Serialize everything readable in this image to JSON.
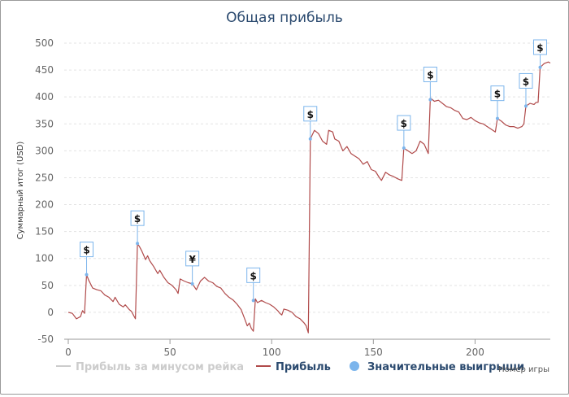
{
  "chart_data": {
    "type": "line",
    "title": "Общая прибыль",
    "xlabel": "Номер игры",
    "ylabel": "Суммарный итог (USD)",
    "xlim": [
      -2,
      237
    ],
    "ylim": [
      -50,
      500
    ],
    "xticks": [
      0,
      50,
      100,
      150,
      200
    ],
    "yticks": [
      -50,
      0,
      50,
      100,
      150,
      200,
      250,
      300,
      350,
      400,
      450,
      500
    ],
    "grid": "horizontal dashed",
    "legend_position": "bottom",
    "legend": [
      {
        "label": "Прибыль за минусом рейка",
        "color": "#cccccc",
        "marker": "line",
        "hidden": true
      },
      {
        "label": "Прибыль",
        "color": "#b04a4a",
        "marker": "line"
      },
      {
        "label": "Значительные выигрыши",
        "color": "#7cb5ec",
        "marker": "circle"
      }
    ],
    "series": [
      {
        "name": "Прибыль",
        "color": "#b04a4a",
        "points": [
          [
            0,
            0
          ],
          [
            2,
            -2
          ],
          [
            4,
            -12
          ],
          [
            6,
            -8
          ],
          [
            7,
            3
          ],
          [
            8,
            -2
          ],
          [
            9,
            70
          ],
          [
            10,
            60
          ],
          [
            12,
            45
          ],
          [
            14,
            42
          ],
          [
            16,
            40
          ],
          [
            18,
            32
          ],
          [
            20,
            28
          ],
          [
            22,
            20
          ],
          [
            23,
            28
          ],
          [
            25,
            15
          ],
          [
            27,
            10
          ],
          [
            28,
            14
          ],
          [
            30,
            5
          ],
          [
            31,
            2
          ],
          [
            32,
            -5
          ],
          [
            33,
            -12
          ],
          [
            34,
            128
          ],
          [
            35,
            122
          ],
          [
            36,
            115
          ],
          [
            38,
            98
          ],
          [
            39,
            105
          ],
          [
            40,
            96
          ],
          [
            42,
            85
          ],
          [
            44,
            72
          ],
          [
            45,
            78
          ],
          [
            47,
            65
          ],
          [
            49,
            55
          ],
          [
            51,
            50
          ],
          [
            53,
            42
          ],
          [
            54,
            35
          ],
          [
            55,
            62
          ],
          [
            57,
            58
          ],
          [
            59,
            55
          ],
          [
            61,
            53
          ],
          [
            63,
            42
          ],
          [
            65,
            58
          ],
          [
            67,
            65
          ],
          [
            69,
            58
          ],
          [
            71,
            55
          ],
          [
            73,
            48
          ],
          [
            75,
            45
          ],
          [
            77,
            35
          ],
          [
            79,
            28
          ],
          [
            81,
            23
          ],
          [
            83,
            15
          ],
          [
            85,
            5
          ],
          [
            86,
            -5
          ],
          [
            87,
            -15
          ],
          [
            88,
            -25
          ],
          [
            89,
            -20
          ],
          [
            90,
            -30
          ],
          [
            91,
            -35
          ],
          [
            92,
            25
          ],
          [
            93,
            18
          ],
          [
            95,
            22
          ],
          [
            97,
            18
          ],
          [
            99,
            15
          ],
          [
            101,
            10
          ],
          [
            103,
            3
          ],
          [
            104,
            -2
          ],
          [
            105,
            -5
          ],
          [
            106,
            6
          ],
          [
            108,
            4
          ],
          [
            110,
            0
          ],
          [
            112,
            -8
          ],
          [
            114,
            -12
          ],
          [
            116,
            -20
          ],
          [
            117,
            -25
          ],
          [
            118,
            -38
          ],
          [
            119,
            322
          ],
          [
            121,
            338
          ],
          [
            123,
            332
          ],
          [
            125,
            318
          ],
          [
            127,
            312
          ],
          [
            128,
            338
          ],
          [
            130,
            335
          ],
          [
            131,
            322
          ],
          [
            133,
            318
          ],
          [
            135,
            300
          ],
          [
            137,
            308
          ],
          [
            139,
            295
          ],
          [
            141,
            290
          ],
          [
            143,
            285
          ],
          [
            145,
            275
          ],
          [
            147,
            280
          ],
          [
            149,
            265
          ],
          [
            151,
            262
          ],
          [
            153,
            250
          ],
          [
            154,
            245
          ],
          [
            156,
            260
          ],
          [
            158,
            255
          ],
          [
            160,
            252
          ],
          [
            162,
            248
          ],
          [
            164,
            245
          ],
          [
            165,
            305
          ],
          [
            167,
            300
          ],
          [
            169,
            295
          ],
          [
            171,
            300
          ],
          [
            173,
            318
          ],
          [
            175,
            312
          ],
          [
            177,
            295
          ],
          [
            178,
            398
          ],
          [
            180,
            392
          ],
          [
            182,
            394
          ],
          [
            184,
            388
          ],
          [
            186,
            382
          ],
          [
            188,
            380
          ],
          [
            190,
            375
          ],
          [
            192,
            372
          ],
          [
            194,
            360
          ],
          [
            196,
            358
          ],
          [
            198,
            362
          ],
          [
            200,
            356
          ],
          [
            202,
            352
          ],
          [
            204,
            350
          ],
          [
            206,
            345
          ],
          [
            208,
            340
          ],
          [
            210,
            335
          ],
          [
            211,
            360
          ],
          [
            213,
            355
          ],
          [
            215,
            348
          ],
          [
            217,
            345
          ],
          [
            219,
            345
          ],
          [
            221,
            342
          ],
          [
            223,
            345
          ],
          [
            224,
            350
          ],
          [
            225,
            383
          ],
          [
            227,
            388
          ],
          [
            229,
            386
          ],
          [
            230,
            390
          ],
          [
            231,
            390
          ],
          [
            232,
            455
          ],
          [
            234,
            462
          ],
          [
            236,
            465
          ],
          [
            237,
            463
          ]
        ]
      }
    ],
    "significant_wins": [
      {
        "x": 9,
        "y": 70,
        "symbol": "$"
      },
      {
        "x": 34,
        "y": 128,
        "symbol": "$"
      },
      {
        "x": 61,
        "y": 53,
        "symbol": "¥"
      },
      {
        "x": 91,
        "y": 22,
        "symbol": "$"
      },
      {
        "x": 119,
        "y": 322,
        "symbol": "$"
      },
      {
        "x": 165,
        "y": 305,
        "symbol": "$"
      },
      {
        "x": 178,
        "y": 395,
        "symbol": "$"
      },
      {
        "x": 211,
        "y": 360,
        "symbol": "$"
      },
      {
        "x": 225,
        "y": 383,
        "symbol": "$"
      },
      {
        "x": 232,
        "y": 455,
        "symbol": "$"
      }
    ]
  }
}
